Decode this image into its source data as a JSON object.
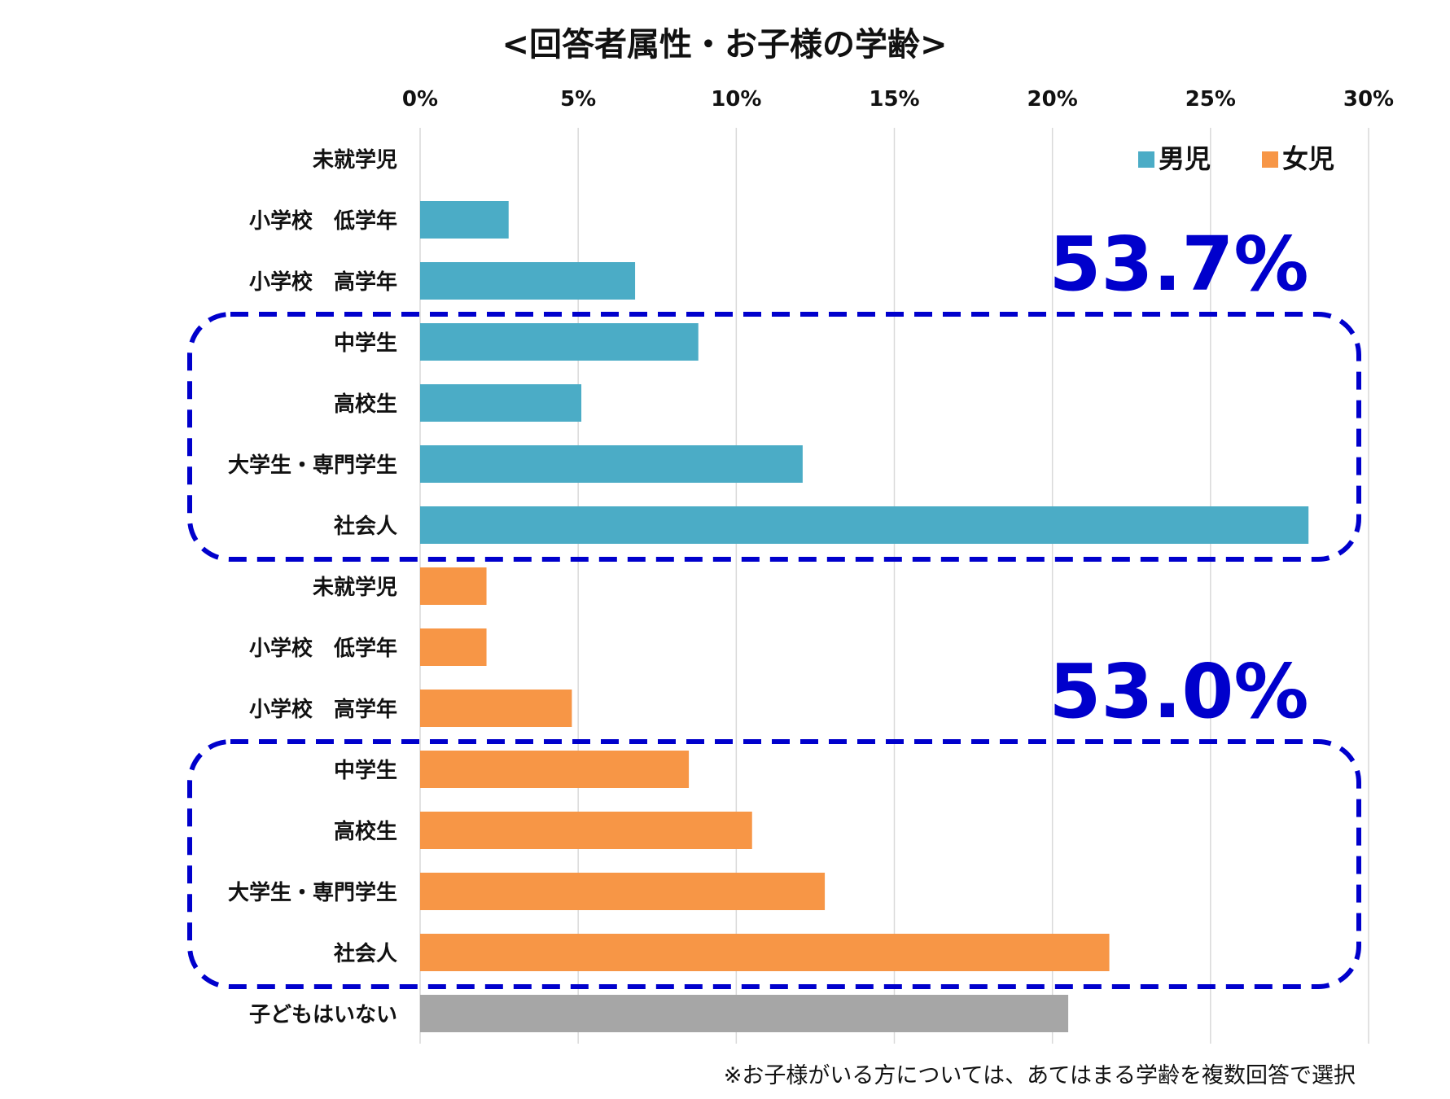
{
  "chart_data": {
    "type": "bar",
    "orientation": "horizontal",
    "title": "<回答者属性・お子様の学齢>",
    "xlim": [
      0,
      30
    ],
    "x_ticks": [
      "0%",
      "5%",
      "10%",
      "15%",
      "20%",
      "25%",
      "30%"
    ],
    "grid": "vertical",
    "legend": {
      "placement": "top-right",
      "entries": [
        {
          "name": "男児",
          "color": "#4bacc6"
        },
        {
          "name": "女児",
          "color": "#f79646"
        }
      ]
    },
    "rows": [
      {
        "label": "未就学児",
        "value": 0.0,
        "group": "男児"
      },
      {
        "label": "小学校　低学年",
        "value": 2.8,
        "group": "男児"
      },
      {
        "label": "小学校　高学年",
        "value": 6.8,
        "group": "男児"
      },
      {
        "label": "中学生",
        "value": 8.8,
        "group": "男児"
      },
      {
        "label": "高校生",
        "value": 5.1,
        "group": "男児"
      },
      {
        "label": "大学生・専門学生",
        "value": 12.1,
        "group": "男児"
      },
      {
        "label": "社会人",
        "value": 28.1,
        "group": "男児"
      },
      {
        "label": "未就学児",
        "value": 2.1,
        "group": "女児"
      },
      {
        "label": "小学校　低学年",
        "value": 2.1,
        "group": "女児"
      },
      {
        "label": "小学校　高学年",
        "value": 4.8,
        "group": "女児"
      },
      {
        "label": "中学生",
        "value": 8.5,
        "group": "女児"
      },
      {
        "label": "高校生",
        "value": 10.5,
        "group": "女児"
      },
      {
        "label": "大学生・専門学生",
        "value": 12.8,
        "group": "女児"
      },
      {
        "label": "社会人",
        "value": 21.8,
        "group": "女児"
      },
      {
        "label": "子どもはいない",
        "value": 20.5,
        "group": "none"
      }
    ],
    "colors": {
      "none": "#a6a6a6",
      "highlight": "#0000cc"
    },
    "annotations": [
      {
        "text": "53.7%",
        "rows": [
          3,
          6
        ]
      },
      {
        "text": "53.0%",
        "rows": [
          10,
          13
        ]
      }
    ],
    "note": "※お子様がいる方については、あてはまる学齢を複数回答で選択"
  }
}
